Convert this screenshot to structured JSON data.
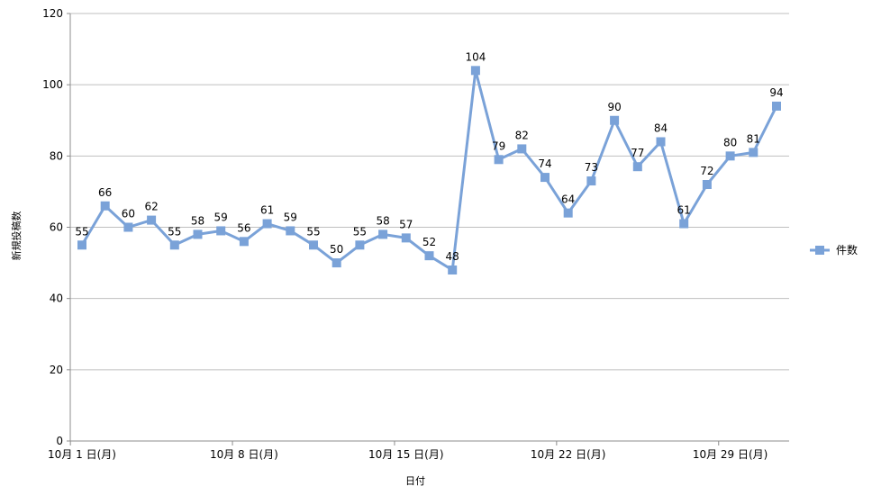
{
  "chart_data": {
    "type": "line",
    "xlabel": "日付",
    "ylabel": "新規投稿数",
    "ylim": [
      0,
      120
    ],
    "y_ticks": [
      0,
      20,
      40,
      60,
      80,
      100,
      120
    ],
    "grid": "horizontal",
    "legend_position": "right",
    "x_tick_labels": [
      "10月 1 日(月)",
      "10月 8 日(月)",
      "10月 15 日(月)",
      "10月 22 日(月)",
      "10月 29 日(月)"
    ],
    "categories": [
      "10/1",
      "10/2",
      "10/3",
      "10/4",
      "10/5",
      "10/6",
      "10/7",
      "10/8",
      "10/9",
      "10/10",
      "10/11",
      "10/12",
      "10/13",
      "10/14",
      "10/15",
      "10/16",
      "10/17",
      "10/18",
      "10/19",
      "10/20",
      "10/21",
      "10/22",
      "10/23",
      "10/24",
      "10/25",
      "10/26",
      "10/27",
      "10/28",
      "10/29",
      "10/30",
      "10/31"
    ],
    "series": [
      {
        "name": "件数",
        "color": "#7aa2d8",
        "marker": "square",
        "values": [
          55,
          66,
          60,
          62,
          55,
          58,
          59,
          56,
          61,
          59,
          55,
          50,
          55,
          58,
          57,
          52,
          48,
          104,
          79,
          82,
          74,
          64,
          73,
          90,
          77,
          84,
          61,
          72,
          80,
          81,
          94
        ]
      }
    ]
  }
}
